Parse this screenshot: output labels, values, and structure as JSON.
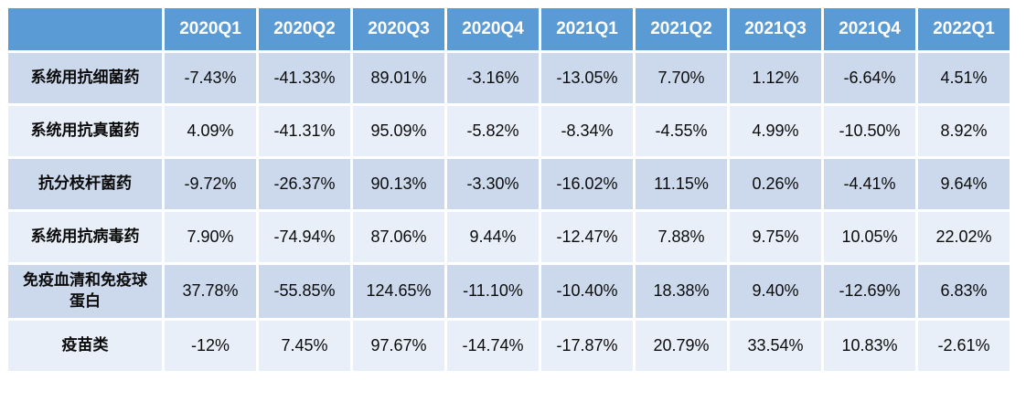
{
  "chart_data": {
    "type": "table",
    "title": "",
    "columns": [
      "",
      "2020Q1",
      "2020Q2",
      "2020Q3",
      "2020Q4",
      "2021Q1",
      "2021Q2",
      "2021Q3",
      "2021Q4",
      "2022Q1"
    ],
    "rows": [
      {
        "label": "系统用抗细菌药",
        "values": [
          "-7.43%",
          "-41.33%",
          "89.01%",
          "-3.16%",
          "-13.05%",
          "7.70%",
          "1.12%",
          "-6.64%",
          "4.51%"
        ]
      },
      {
        "label": "系统用抗真菌药",
        "values": [
          "4.09%",
          "-41.31%",
          "95.09%",
          "-5.82%",
          "-8.34%",
          "-4.55%",
          "4.99%",
          "-10.50%",
          "8.92%"
        ]
      },
      {
        "label": "抗分枝杆菌药",
        "values": [
          "-9.72%",
          "-26.37%",
          "90.13%",
          "-3.30%",
          "-16.02%",
          "11.15%",
          "0.26%",
          "-4.41%",
          "9.64%"
        ]
      },
      {
        "label": "系统用抗病毒药",
        "values": [
          "7.90%",
          "-74.94%",
          "87.06%",
          "9.44%",
          "-12.47%",
          "7.88%",
          "9.75%",
          "10.05%",
          "22.02%"
        ]
      },
      {
        "label": "免疫血清和免疫球蛋白",
        "values": [
          "37.78%",
          "-55.85%",
          "124.65%",
          "-11.10%",
          "-10.40%",
          "18.38%",
          "9.40%",
          "-12.69%",
          "6.83%"
        ]
      },
      {
        "label": "疫苗类",
        "values": [
          "-12%",
          "7.45%",
          "97.67%",
          "-14.74%",
          "-17.87%",
          "20.79%",
          "33.54%",
          "10.83%",
          "-2.61%"
        ]
      }
    ]
  },
  "colors": {
    "header_bg": "#5b9bd5",
    "header_text": "#ffffff",
    "band_dark": "#ccd9ec",
    "band_light": "#e9eff8",
    "cell_text": "#0b0b0b",
    "page_bg": "#ffffff"
  }
}
